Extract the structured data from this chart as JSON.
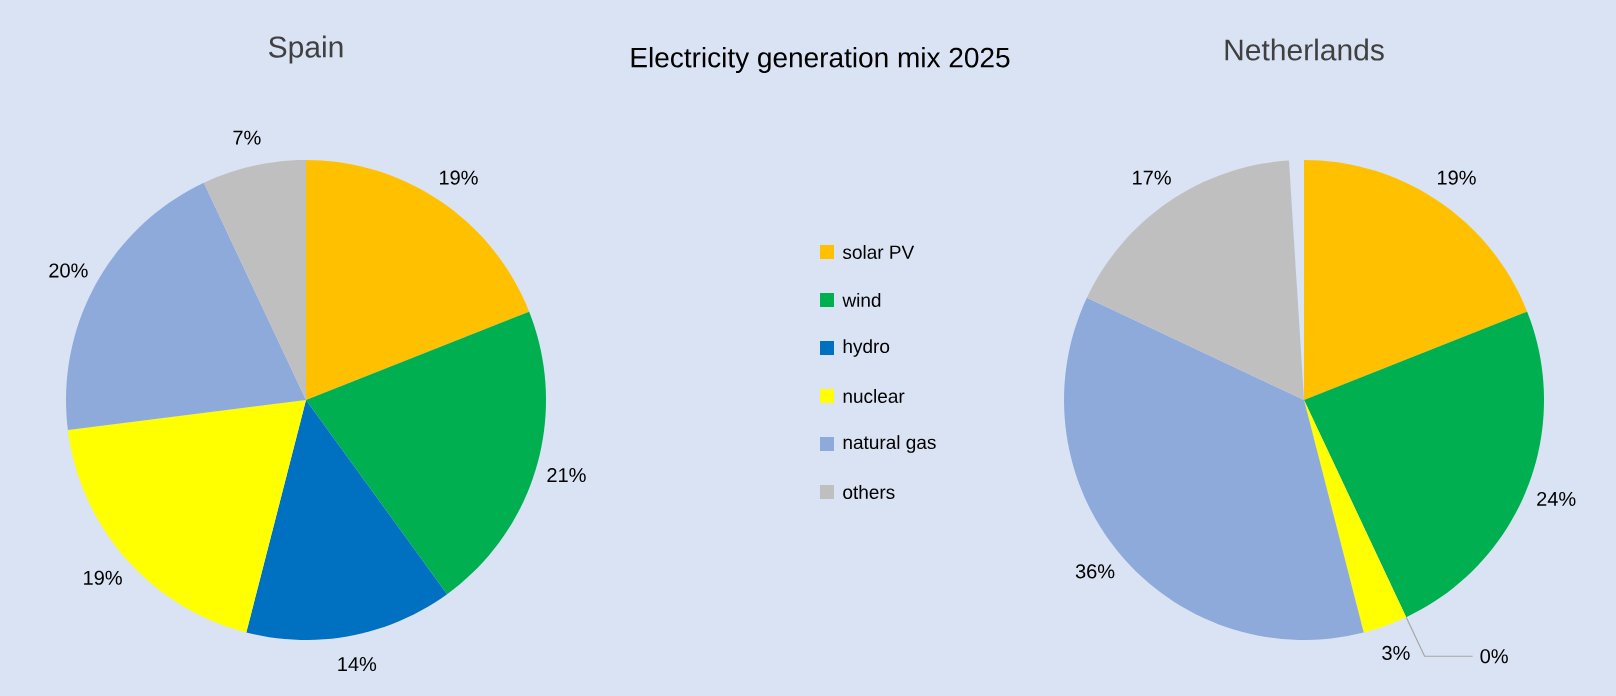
{
  "chart_data": [
    {
      "type": "pie",
      "title": "Spain",
      "annotations": [
        "Electricity generation mix 2025"
      ],
      "legend": "right",
      "categories": [
        "solar PV",
        "wind",
        "hydro",
        "nuclear",
        "natural gas",
        "others"
      ],
      "values": [
        19,
        21,
        14,
        19,
        20,
        7
      ],
      "colors": [
        "#ffc000",
        "#00b050",
        "#0070c0",
        "#ffff00",
        "#8eaadb",
        "#bfbfbf"
      ],
      "value_labels": [
        "19%",
        "21%",
        "14%",
        "19%",
        "20%",
        "7%"
      ]
    },
    {
      "type": "pie",
      "title": "Netherlands",
      "categories": [
        null,
        null,
        null,
        null,
        null,
        null
      ],
      "values": [
        19,
        24,
        0,
        3,
        36,
        17
      ],
      "colors": [
        "#ffc000",
        "#00b050",
        "#0070c0",
        "#ffff00",
        "#8eaadb",
        "#bfbfbf"
      ],
      "value_labels": [
        "19%",
        "24%",
        "0%",
        "3%",
        "36%",
        "17%"
      ]
    }
  ]
}
